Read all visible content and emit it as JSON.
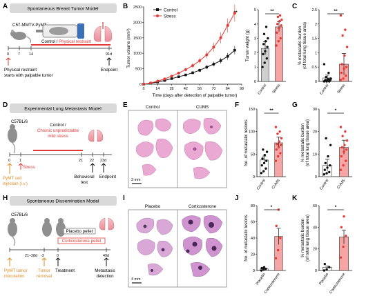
{
  "panels": [
    "A",
    "B",
    "C",
    "D",
    "E",
    "F",
    "G",
    "H",
    "I",
    "J",
    "K"
  ],
  "colors": {
    "red": "#e53935",
    "pink": "#f6a5a5",
    "gray": "#cfcfcf",
    "orange": "#e08a1e",
    "black": "#111111"
  },
  "A": {
    "title": "Spontaneous Breast Tumor Model",
    "mouse": "C57-MMTV-PyMT",
    "treat_control": "Control / ",
    "treat_restraint": "Physical restraint",
    "ticks": [
      "0",
      "7",
      "14",
      "91d"
    ],
    "start1": "Physical restraint",
    "start2": "starts with palpable tumor",
    "endpoint": "Endpoint"
  },
  "B": {
    "chart_data": {
      "type": "line",
      "ylabel": "Tumor volume (mm³)",
      "xlabel": "Time (days after detection of palpable tumor)",
      "x": [
        0,
        7,
        14,
        21,
        28,
        35,
        42,
        49,
        56,
        63,
        70,
        77,
        84,
        91
      ],
      "xticks": [
        0,
        14,
        28,
        42,
        56,
        70,
        84,
        98
      ],
      "yticks": [
        0,
        500,
        1000,
        1500,
        2000,
        2500
      ],
      "ylim": [
        0,
        2500
      ],
      "xlim": [
        0,
        98
      ],
      "series": [
        {
          "name": "Control",
          "values": [
            0,
            30,
            70,
            120,
            180,
            240,
            300,
            370,
            450,
            550,
            650,
            760,
            900,
            1100
          ]
        },
        {
          "name": "Stress",
          "values": [
            0,
            40,
            100,
            170,
            260,
            360,
            470,
            600,
            760,
            950,
            1200,
            1500,
            1900,
            2300
          ]
        }
      ],
      "annotation": "**"
    }
  },
  "B2": {
    "chart_data": {
      "type": "bar",
      "ylabel": "Tumor weight (g)",
      "categories": [
        "Control",
        "Stress"
      ],
      "values": [
        2.3,
        3.8
      ],
      "yticks": [
        0,
        1,
        2,
        3,
        4,
        5
      ],
      "ylim": [
        0,
        5
      ],
      "points": [
        [
          1.0,
          1.3,
          1.6,
          1.9,
          2.1,
          2.4,
          2.6,
          2.8,
          3.0,
          3.3,
          3.8
        ],
        [
          2.5,
          2.8,
          3.0,
          3.4,
          3.7,
          3.9,
          4.0,
          4.2,
          4.3,
          4.5,
          4.6
        ]
      ],
      "annotation": "**"
    }
  },
  "C": {
    "chart_data": {
      "type": "bar",
      "ylabel": "% metastatic burden",
      "ylabel2": "(of total lung tissue area)",
      "categories": [
        "Control",
        "Stress"
      ],
      "values": [
        0.12,
        0.6
      ],
      "yticks": [
        0,
        0.5,
        1.0,
        1.5,
        2.0,
        2.5
      ],
      "ylim": [
        0,
        2.5
      ],
      "points": [
        [
          0,
          0,
          0,
          0.02,
          0.03,
          0.05,
          0.05,
          0.08,
          0.1,
          0.15,
          0.3,
          0.6
        ],
        [
          0.05,
          0.1,
          0.2,
          0.3,
          0.45,
          0.5,
          0.6,
          0.9,
          1.2,
          1.6,
          1.8,
          2.3
        ]
      ],
      "annotation": "**"
    }
  },
  "D": {
    "title": "Experimental Lung Metastasis Model",
    "mouse": "C57BL/6",
    "treat1": "Control / ",
    "treat2": "Chronic unpredictable",
    "treat3": "mild stress",
    "ticks": [
      "0",
      "1",
      "21",
      "22",
      "23d"
    ],
    "stress": "Stress",
    "injection1": "PyMT cell",
    "injection2": "injection (i.v.)",
    "behavior1": "Behavioral",
    "behavior2": "test",
    "endpoint": "Endpoint"
  },
  "E": {
    "control": "Control",
    "cums": "CUMS",
    "scale": "3 mm"
  },
  "F": {
    "chart_data": {
      "type": "bar",
      "ylabel": "No. of metastatic lesions",
      "categories": [
        "Control",
        "CUMS"
      ],
      "values": [
        37,
        75
      ],
      "yticks": [
        0,
        50,
        100,
        150
      ],
      "ylim": [
        0,
        150
      ],
      "points": [
        [
          8,
          12,
          18,
          25,
          30,
          35,
          40,
          48,
          55,
          60
        ],
        [
          35,
          45,
          52,
          60,
          65,
          70,
          72,
          78,
          85,
          95,
          100,
          110
        ]
      ],
      "annotation": "**"
    }
  },
  "G": {
    "chart_data": {
      "type": "bar",
      "ylabel": "% metastatic burden",
      "ylabel2": "(of total lung tissue area)",
      "categories": [
        "Control",
        "CUMS"
      ],
      "values": [
        5,
        13
      ],
      "yticks": [
        0,
        10,
        20,
        30
      ],
      "ylim": [
        0,
        30
      ],
      "points": [
        [
          1,
          1.5,
          2,
          3,
          4,
          5,
          6,
          9,
          14,
          17
        ],
        [
          3,
          5,
          7,
          9,
          11,
          12,
          13,
          14,
          16,
          18,
          20,
          22
        ]
      ],
      "annotation": "*"
    }
  },
  "H": {
    "title": "Spontaneous Dissemination Model",
    "mouse": "C57BL/6",
    "placebo": "Placebo pellet",
    "cort": "Corticosterone pellet",
    "ticks": [
      "21–28d",
      "-3",
      "0",
      "49d"
    ],
    "inoc1": "PyMT tumor",
    "inoc2": "inoculation",
    "removal1": "Tumor",
    "removal2": "removal",
    "treatment": "Treatment",
    "det1": "Metastasis",
    "det2": "detection"
  },
  "I": {
    "placebo": "Placebo",
    "cort": "Corticosterone",
    "scale": "4 mm"
  },
  "J": {
    "chart_data": {
      "type": "bar",
      "ylabel": "No. of metastatic lesions",
      "categories": [
        "Placebo",
        "Corticosterone"
      ],
      "values": [
        2,
        42
      ],
      "yticks": [
        0,
        20,
        40,
        60,
        80
      ],
      "ylim": [
        0,
        80
      ],
      "points": [
        [
          0,
          1,
          2,
          3,
          4
        ],
        [
          15,
          25,
          40,
          55,
          75
        ]
      ],
      "annotation": "*"
    }
  },
  "K": {
    "chart_data": {
      "type": "bar",
      "ylabel": "% metastatic burden",
      "ylabel2": "(of total lung tissue area)",
      "categories": [
        "Placebo",
        "Corticosterone"
      ],
      "values": [
        3,
        31
      ],
      "yticks": [
        0,
        20,
        40,
        60
      ],
      "ylim": [
        0,
        60
      ],
      "points": [
        [
          0,
          1,
          3,
          6
        ],
        [
          12,
          22,
          32,
          40,
          50
        ]
      ],
      "annotation": "*"
    }
  }
}
